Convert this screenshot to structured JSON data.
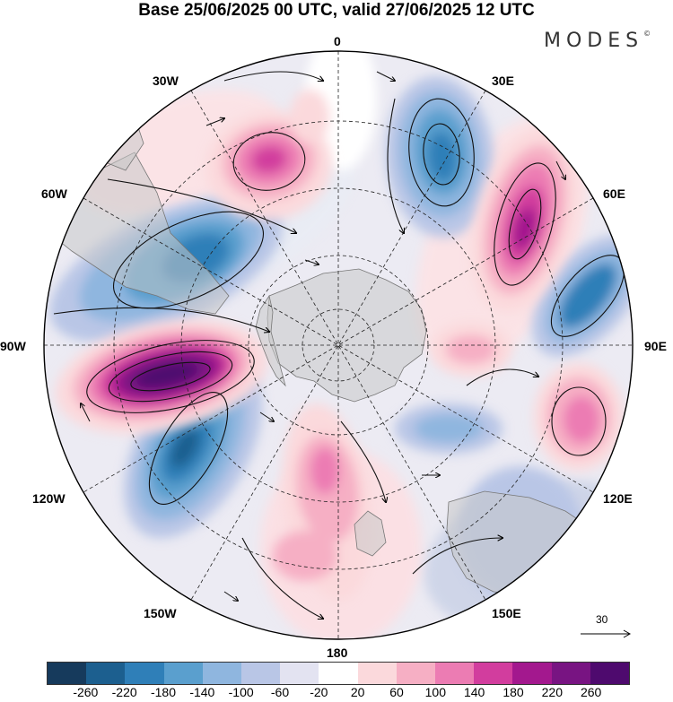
{
  "header": {
    "title": "Base 25/06/2025 00 UTC, valid 27/06/2025 12 UTC",
    "brand": "MODES",
    "brand_mark": "©"
  },
  "map": {
    "projection": "south polar stereographic",
    "longitude_labels": {
      "top": "0",
      "top_left": "30W",
      "top_right": "30E",
      "upper_left": "60W",
      "upper_right": "60E",
      "left": "90W",
      "right": "90E",
      "lower_left": "120W",
      "lower_right": "120E",
      "bottom_left": "150W",
      "bottom_right": "150E",
      "bottom": "180"
    },
    "reference_vector": {
      "label": "30"
    }
  },
  "colorbar": {
    "ticks": [
      "-260",
      "-220",
      "-180",
      "-140",
      "-100",
      "-60",
      "-20",
      "20",
      "60",
      "100",
      "140",
      "180",
      "220",
      "260"
    ],
    "colors": [
      "#163a5c",
      "#1c5f8f",
      "#2f7fb8",
      "#5a9fce",
      "#8fb6df",
      "#b9c6e6",
      "#e3e3f1",
      "#ffffff",
      "#fbd9dc",
      "#f6afc4",
      "#ec7cb3",
      "#d23d9e",
      "#a3188e",
      "#781482",
      "#4e0a6e"
    ]
  }
}
